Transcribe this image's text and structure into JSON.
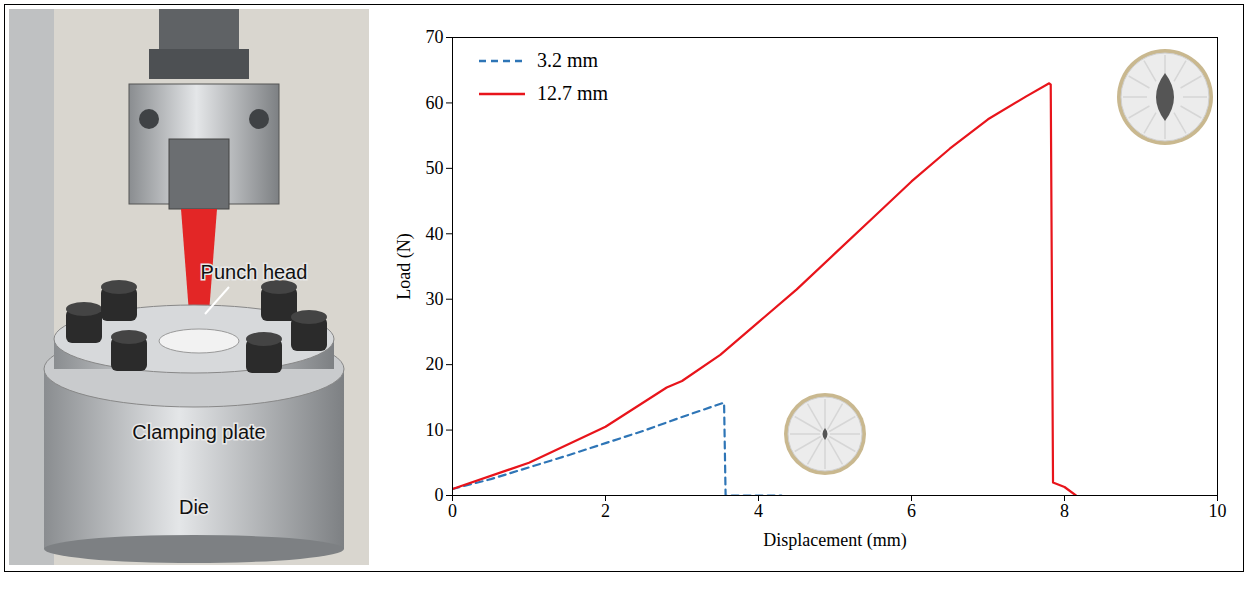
{
  "chart_data": {
    "type": "line",
    "x_label": "Displacement (mm)",
    "y_label": "Load (N)",
    "xlim": [
      0,
      10
    ],
    "xticks": [
      0,
      2,
      4,
      6,
      8,
      10
    ],
    "ylim": [
      0,
      70
    ],
    "yticks": [
      0,
      10,
      20,
      30,
      40,
      50,
      60,
      70
    ],
    "grid": false,
    "legend": "top-left",
    "series": [
      {
        "name": "3.2 mm",
        "color": "#2e75b6",
        "line_style": "dashed",
        "x": [
          0,
          0.5,
          1,
          1.5,
          2,
          2.5,
          3,
          3.55,
          3.57,
          4.3
        ],
        "values": [
          1,
          2.5,
          4.3,
          6.1,
          8.0,
          9.9,
          12.0,
          14.2,
          0,
          0
        ]
      },
      {
        "name": "12.7 mm",
        "color": "#e8141b",
        "line_style": "solid",
        "x": [
          0,
          1,
          2,
          2.8,
          3,
          3.5,
          4,
          4.5,
          5,
          5.5,
          6,
          6.5,
          7,
          7.5,
          7.8,
          7.82,
          7.85,
          8.0,
          8.15
        ],
        "values": [
          1,
          5,
          10.5,
          16.5,
          17.5,
          21.5,
          26.5,
          31.5,
          37,
          42.5,
          48,
          53,
          57.5,
          61,
          63,
          62.8,
          2,
          1.3,
          0
        ]
      }
    ]
  },
  "photo": {
    "labels": [
      "Punch head",
      "Clamping plate",
      "Die"
    ]
  }
}
